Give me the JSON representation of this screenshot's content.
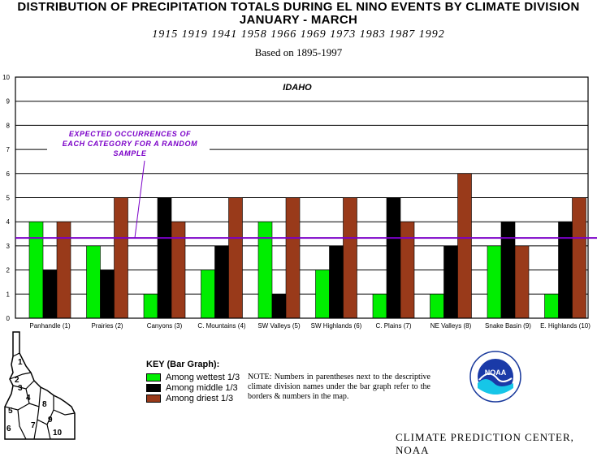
{
  "header": {
    "line1": "DISTRIBUTION OF PRECIPITATION TOTALS DURING EL NINO EVENTS BY CLIMATE DIVISION",
    "line2": "JANUARY - MARCH",
    "line3": "1915  1919  1941  1958  1966  1969  1973  1983  1987  1992",
    "line4": "Based on 1895-1997"
  },
  "chart_data": {
    "type": "bar",
    "title": "IDAHO",
    "ylim": [
      0,
      10
    ],
    "yticks": [
      "0",
      "1",
      "2",
      "3",
      "4",
      "5",
      "6",
      "7",
      "8",
      "9",
      "10"
    ],
    "grid": true,
    "categories": [
      "Panhandle (1)",
      "Prairies (2)",
      "Canyons (3)",
      "C. Mountains (4)",
      "SW Valleys (5)",
      "SW Highlands (6)",
      "C. Plains (7)",
      "NE Valleys (8)",
      "Snake Basin (9)",
      "E. Highlands (10)"
    ],
    "series": [
      {
        "name": "Among wettest 1/3",
        "color": "#00ee00",
        "values": [
          4,
          3,
          1,
          2,
          4,
          2,
          1,
          1,
          3,
          1
        ]
      },
      {
        "name": "Among middle 1/3",
        "color": "#000000",
        "values": [
          2,
          2,
          5,
          3,
          1,
          3,
          5,
          3,
          4,
          4
        ]
      },
      {
        "name": "Among driest 1/3",
        "color": "#993a1a",
        "values": [
          4,
          5,
          4,
          5,
          5,
          5,
          4,
          6,
          3,
          5
        ]
      }
    ],
    "reference_line": {
      "value": 3.33,
      "color": "#7b00c8",
      "label": [
        "EXPECTED OCCURRENCES OF",
        "EACH CATEGORY FOR A RANDOM",
        "SAMPLE"
      ]
    }
  },
  "key": {
    "title": "KEY (Bar Graph):",
    "items": [
      "Among wettest 1/3",
      "Among middle 1/3",
      "Among driest 1/3"
    ]
  },
  "note": "NOTE:  Numbers in parentheses next to the descriptive climate division names under the bar graph refer to the borders & numbers in the map.",
  "map_labels": [
    "1",
    "2",
    "3",
    "4",
    "5",
    "6",
    "7",
    "8",
    "9",
    "10"
  ],
  "logo": {
    "text": "NOAA",
    "icon": "noaa-logo-icon"
  },
  "footer": "CLIMATE PREDICTION CENTER, NOAA"
}
